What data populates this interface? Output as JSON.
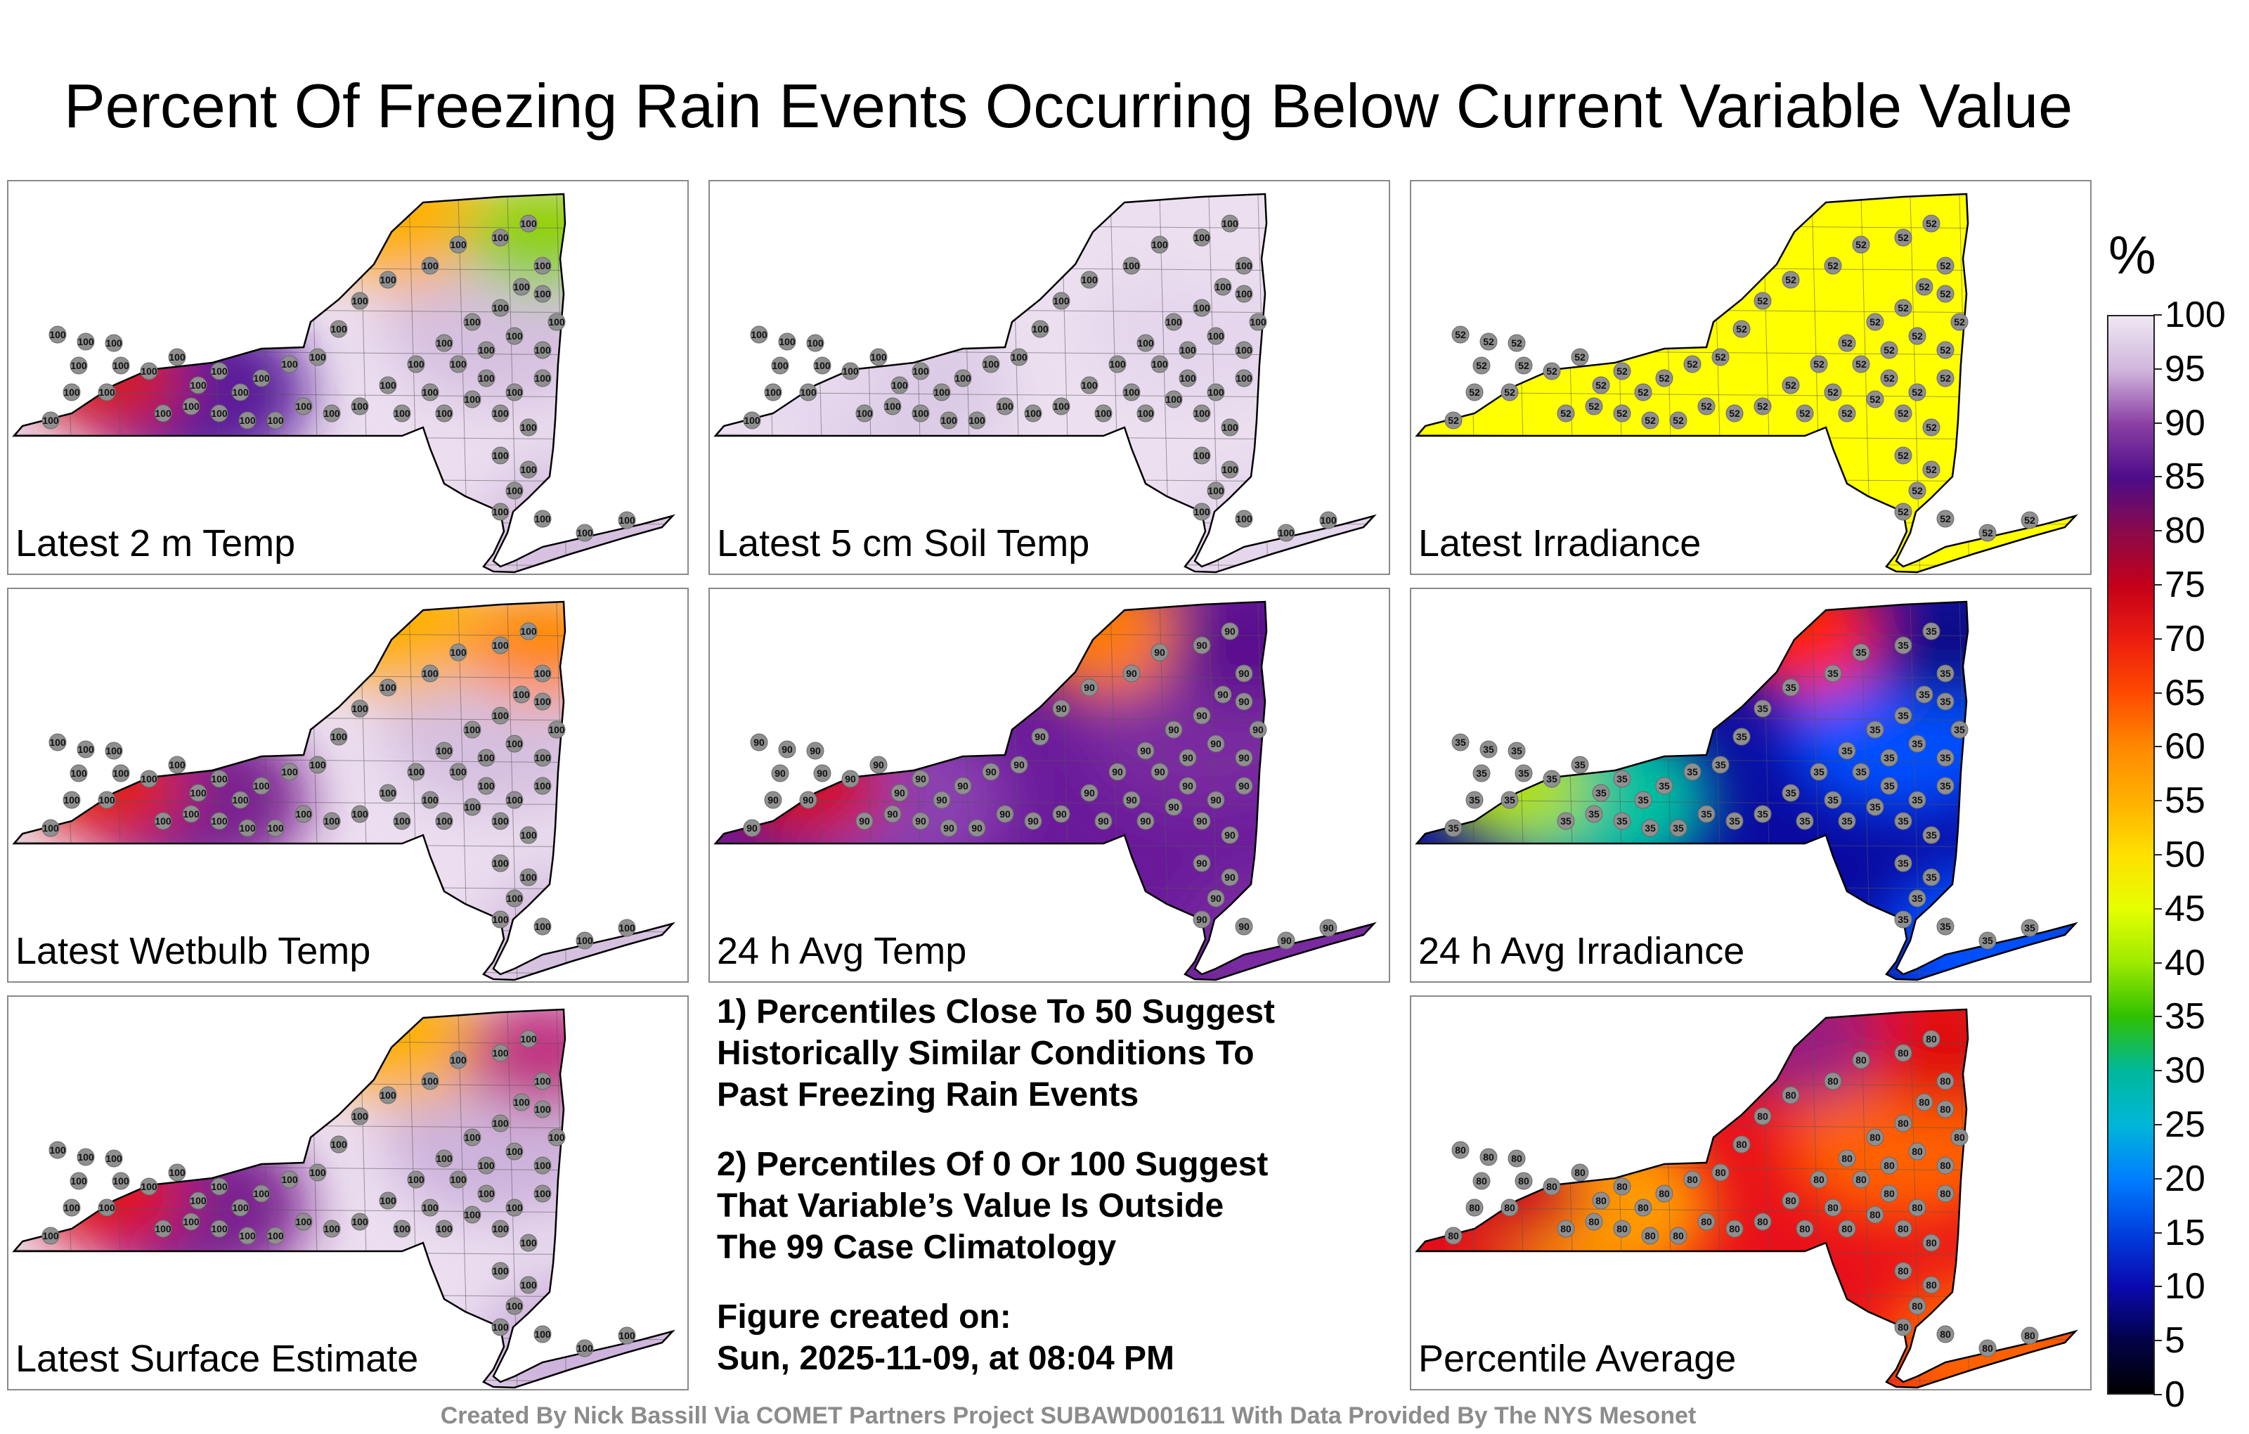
{
  "title": "Percent Of Freezing Rain Events Occurring Below Current Variable Value",
  "panels": [
    {
      "label": "Latest 2 m Temp",
      "colors": [
        "#ecdff0",
        "#d6c0e0",
        "#5a1a9a",
        "#d21a20",
        "#ffb000",
        "#8fd000"
      ],
      "value": "100"
    },
    {
      "label": "Latest 5 cm Soil Temp",
      "colors": [
        "#ece0f0",
        "#e4d6ec",
        "#dccbe6",
        "#e6d8ee",
        "#ece0f0",
        "#ece0f0"
      ],
      "value": "100"
    },
    {
      "label": "Latest Irradiance",
      "colors": [
        "#ffff00",
        "#ffff00",
        "#ffff00",
        "#ffff00",
        "#ffff00",
        "#ffff00"
      ],
      "value": "52"
    },
    {
      "label": "Latest Wetbulb Temp",
      "colors": [
        "#ecdff0",
        "#d6c0e0",
        "#7a2090",
        "#e02010",
        "#ffb000",
        "#ff8800"
      ],
      "value": "100"
    },
    {
      "label": "24 h Avg Temp",
      "colors": [
        "#6a1a9a",
        "#7a2aa0",
        "#8a40b0",
        "#d01020",
        "#ff7a00",
        "#5a0e8e"
      ],
      "value": "90"
    },
    {
      "label": "24 h Avg Irradiance",
      "colors": [
        "#0a0aa0",
        "#0050ff",
        "#00c0a0",
        "#b0e000",
        "#ff2000",
        "#10108a"
      ],
      "value": "35"
    },
    {
      "label": "Latest Surface Estimate",
      "colors": [
        "#ecdff0",
        "#cdb3dc",
        "#7a2090",
        "#e01818",
        "#ffb000",
        "#c03080"
      ],
      "value": "100"
    },
    {
      "label": "Percentile Average",
      "colors": [
        "#e8101a",
        "#ff6000",
        "#ff9a00",
        "#d0101a",
        "#9a1a80",
        "#e01010"
      ],
      "value": "80"
    }
  ],
  "notes": {
    "note1": "1) Percentiles Close To 50 Suggest\nHistorically Similar Conditions To\nPast Freezing Rain Events",
    "note2": "2) Percentiles Of 0 Or 100 Suggest\nThat Variable’s Value Is Outside\nThe 99 Case Climatology",
    "created_label": "Figure created on:",
    "created_value": "Sun, 2025-11-09, at 08:04 PM"
  },
  "credit": "Created By Nick Bassill Via COMET Partners Project SUBAWD001611 With Data Provided By The NYS Mesonet",
  "colorbar": {
    "unit": "%",
    "ticks": [
      "100",
      "95",
      "90",
      "85",
      "80",
      "75",
      "70",
      "65",
      "60",
      "55",
      "50",
      "45",
      "40",
      "35",
      "30",
      "25",
      "20",
      "15",
      "10",
      "5",
      "0"
    ]
  }
}
